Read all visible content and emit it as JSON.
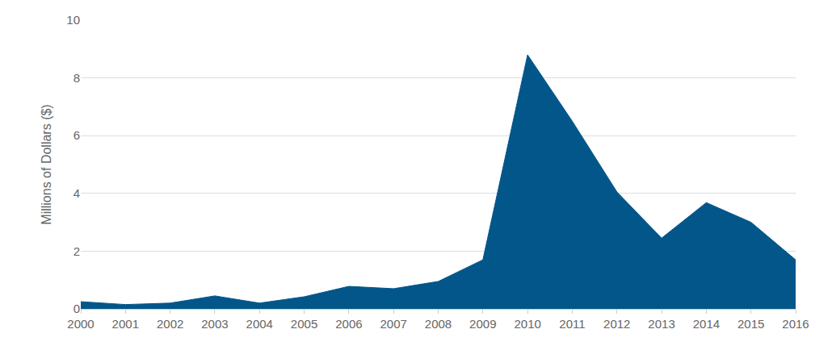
{
  "chart_data": {
    "type": "area",
    "y_label": "Millions of Dollars ($)",
    "x": [
      2000,
      2001,
      2002,
      2003,
      2004,
      2005,
      2006,
      2007,
      2008,
      2009,
      2010,
      2011,
      2012,
      2013,
      2014,
      2015,
      2016
    ],
    "values": [
      0.25,
      0.15,
      0.2,
      0.45,
      0.2,
      0.42,
      0.78,
      0.7,
      0.95,
      1.7,
      8.8,
      6.5,
      4.05,
      2.45,
      3.68,
      3.0,
      1.7
    ],
    "color": "#03568a",
    "xlim": [
      2000,
      2016
    ],
    "xticks": [
      2000,
      2001,
      2002,
      2003,
      2004,
      2005,
      2006,
      2007,
      2008,
      2009,
      2010,
      2011,
      2012,
      2013,
      2014,
      2015,
      2016
    ],
    "ylim": [
      0,
      10
    ],
    "yticks": [
      0,
      2,
      4,
      6,
      8,
      10
    ],
    "grid": true
  }
}
